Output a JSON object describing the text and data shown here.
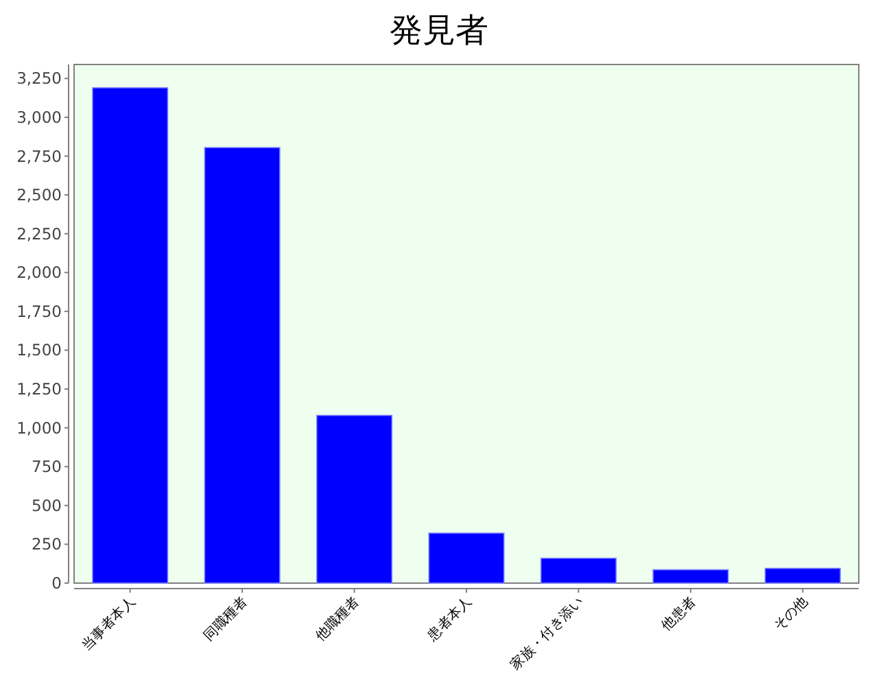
{
  "chart_data": {
    "type": "bar",
    "title": "発見者",
    "categories": [
      "当事者本人",
      "同職種者",
      "他職種者",
      "患者本人",
      "家族・付き添い",
      "他患者",
      "その他"
    ],
    "values": [
      3190,
      2805,
      1080,
      322,
      160,
      86,
      95
    ],
    "color": "#0000ff",
    "ylim": [
      0,
      3340
    ],
    "yticks": [
      0,
      250,
      500,
      750,
      {
        "value": 1000,
        "label": "1,000"
      },
      {
        "value": 1250,
        "label": "1,250"
      },
      {
        "value": 1500,
        "label": "1,500"
      },
      {
        "value": 1750,
        "label": "1,750"
      },
      {
        "value": 2000,
        "label": "2,000"
      },
      {
        "value": 2250,
        "label": "2,250"
      },
      {
        "value": 2500,
        "label": "2,500"
      },
      {
        "value": 2750,
        "label": "2,750"
      },
      {
        "value": 3000,
        "label": "3,000"
      },
      {
        "value": 3250,
        "label": "3,250"
      }
    ]
  }
}
